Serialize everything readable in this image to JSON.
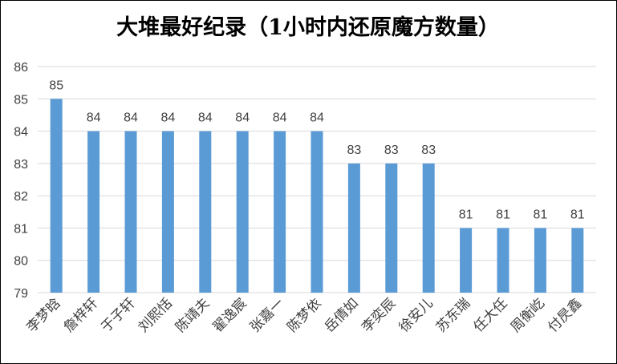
{
  "chart_data": {
    "type": "bar",
    "title": "大堆最好纪录（1小时内还原魔方数量）",
    "categories": [
      "李梦晗",
      "詹梓轩",
      "于子轩",
      "刘熙恬",
      "陈靖夫",
      "翟逸宸",
      "张嘉一",
      "陈梦依",
      "岳倩如",
      "李奕辰",
      "徐安儿",
      "苏东瑞",
      "任大任",
      "周衡屹",
      "付昃鑫"
    ],
    "values": [
      85,
      84,
      84,
      84,
      84,
      84,
      84,
      84,
      83,
      83,
      83,
      81,
      81,
      81,
      81
    ],
    "ylim": [
      79,
      86
    ],
    "yticks": [
      79,
      80,
      81,
      82,
      83,
      84,
      85,
      86
    ],
    "grid": true,
    "bar_color": "#5b9bd5",
    "grid_color": "#d9d9d9",
    "text_color": "#404040"
  }
}
